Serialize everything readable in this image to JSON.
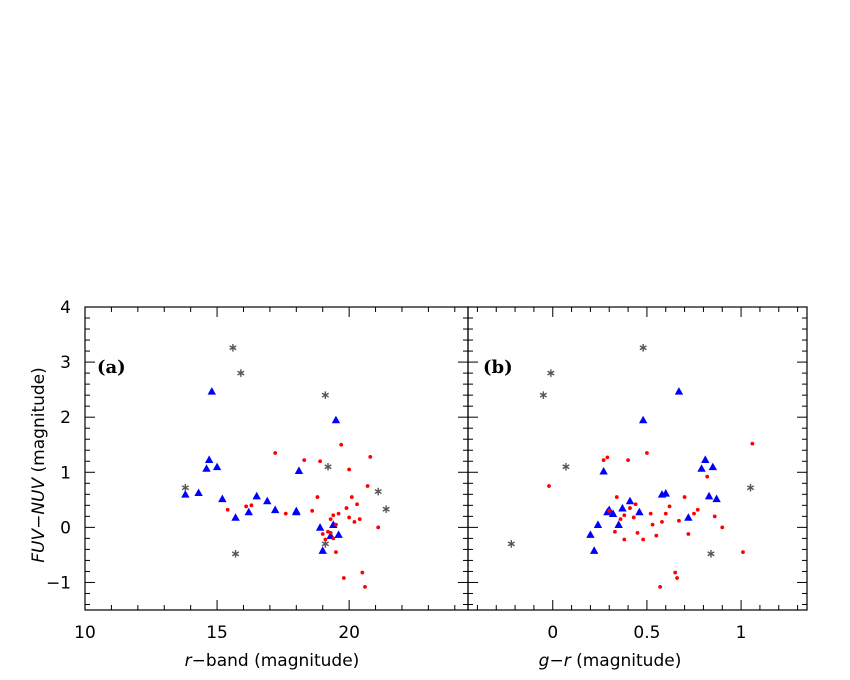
{
  "chart_data": [
    {
      "type": "scatter",
      "panel_label": "(a)",
      "xlabel_prefix": "r",
      "xlabel_suffix": "−band (magnitude)",
      "ylabel_italic": "FUV−NUV",
      "ylabel_suffix": " (magnitude)",
      "xlim": [
        10,
        24.5
      ],
      "ylim": [
        -1.5,
        4
      ],
      "xticks": [
        10,
        15,
        20
      ],
      "yticks": [
        -1,
        0,
        1,
        2,
        3,
        4
      ],
      "series": [
        {
          "name": "triangles",
          "marker": "triangle",
          "color": "#0000ff",
          "x": [
            13.8,
            14.3,
            14.6,
            14.7,
            14.8,
            15.0,
            15.2,
            15.7,
            16.2,
            16.5,
            16.9,
            17.2,
            18.0,
            18.1,
            18.0,
            18.9,
            19.0,
            19.3,
            19.4,
            19.5,
            19.6
          ],
          "y": [
            0.6,
            0.63,
            1.07,
            1.23,
            2.47,
            1.1,
            0.52,
            0.18,
            0.28,
            0.57,
            0.48,
            0.32,
            0.3,
            1.03,
            0.28,
            0.0,
            -0.42,
            -0.15,
            0.05,
            1.95,
            -0.13
          ]
        },
        {
          "name": "circles",
          "marker": "circle",
          "color": "#ff0000",
          "x": [
            15.4,
            16.1,
            16.3,
            17.2,
            17.6,
            18.3,
            18.6,
            18.8,
            18.9,
            19.0,
            19.1,
            19.2,
            19.3,
            19.3,
            19.4,
            19.5,
            19.6,
            19.7,
            19.8,
            19.9,
            20.0,
            20.0,
            20.1,
            20.2,
            20.3,
            20.4,
            20.5,
            20.6,
            20.7,
            20.8,
            21.1,
            19.5,
            19.4
          ],
          "y": [
            0.32,
            0.38,
            0.4,
            1.35,
            0.25,
            1.22,
            0.3,
            0.55,
            1.2,
            -0.12,
            -0.22,
            -0.08,
            0.15,
            -0.1,
            0.22,
            -0.45,
            0.25,
            1.5,
            -0.92,
            0.35,
            1.05,
            0.18,
            0.55,
            0.1,
            0.42,
            0.15,
            -0.82,
            -1.08,
            0.75,
            1.28,
            0.0,
            0.05,
            -0.2
          ]
        },
        {
          "name": "asterisks",
          "marker": "asterisk",
          "color": "#555555",
          "x": [
            13.8,
            15.6,
            15.7,
            15.9,
            19.1,
            19.2,
            19.1,
            21.1,
            21.4
          ],
          "y": [
            0.72,
            3.26,
            -0.48,
            2.8,
            2.4,
            1.1,
            -0.3,
            0.65,
            0.33
          ]
        }
      ]
    },
    {
      "type": "scatter",
      "panel_label": "(b)",
      "xlabel_prefix": "g−r",
      "xlabel_suffix": " (magnitude)",
      "xlim": [
        -0.45,
        1.35
      ],
      "ylim": [
        -1.5,
        4
      ],
      "xticks": [
        0,
        0.5,
        1
      ],
      "xtick_labels": [
        "0",
        "0.5",
        "1"
      ],
      "series": [
        {
          "name": "triangles",
          "marker": "triangle",
          "color": "#0000ff",
          "x": [
            0.2,
            0.22,
            0.24,
            0.27,
            0.29,
            0.3,
            0.32,
            0.35,
            0.37,
            0.41,
            0.46,
            0.48,
            0.58,
            0.6,
            0.67,
            0.72,
            0.79,
            0.81,
            0.83,
            0.85,
            0.87
          ],
          "y": [
            -0.13,
            -0.42,
            0.05,
            1.02,
            0.28,
            0.32,
            0.25,
            0.05,
            0.35,
            0.48,
            0.28,
            1.95,
            0.6,
            0.62,
            2.47,
            0.18,
            1.07,
            1.23,
            0.57,
            1.1,
            0.52
          ]
        },
        {
          "name": "circles",
          "marker": "circle",
          "color": "#ff0000",
          "x": [
            -0.02,
            0.27,
            0.29,
            0.3,
            0.33,
            0.34,
            0.36,
            0.38,
            0.38,
            0.4,
            0.41,
            0.43,
            0.44,
            0.45,
            0.48,
            0.5,
            0.52,
            0.53,
            0.55,
            0.57,
            0.58,
            0.6,
            0.62,
            0.65,
            0.66,
            0.67,
            0.7,
            0.72,
            0.75,
            0.77,
            0.82,
            0.86,
            0.9,
            1.01,
            1.06
          ],
          "y": [
            0.75,
            1.22,
            1.27,
            0.3,
            -0.08,
            0.55,
            0.15,
            -0.22,
            0.22,
            1.22,
            0.35,
            0.18,
            0.42,
            -0.1,
            -0.22,
            1.35,
            0.25,
            0.05,
            -0.15,
            -1.08,
            0.1,
            0.25,
            0.38,
            -0.82,
            -0.92,
            0.12,
            0.55,
            -0.12,
            0.25,
            0.32,
            0.92,
            0.2,
            0.0,
            -0.45,
            1.52
          ]
        },
        {
          "name": "asterisks",
          "marker": "asterisk",
          "color": "#555555",
          "x": [
            -0.22,
            -0.05,
            -0.01,
            0.07,
            0.48,
            0.84,
            1.05
          ],
          "y": [
            -0.3,
            2.4,
            2.8,
            1.1,
            3.26,
            -0.48,
            0.72
          ]
        }
      ]
    }
  ]
}
